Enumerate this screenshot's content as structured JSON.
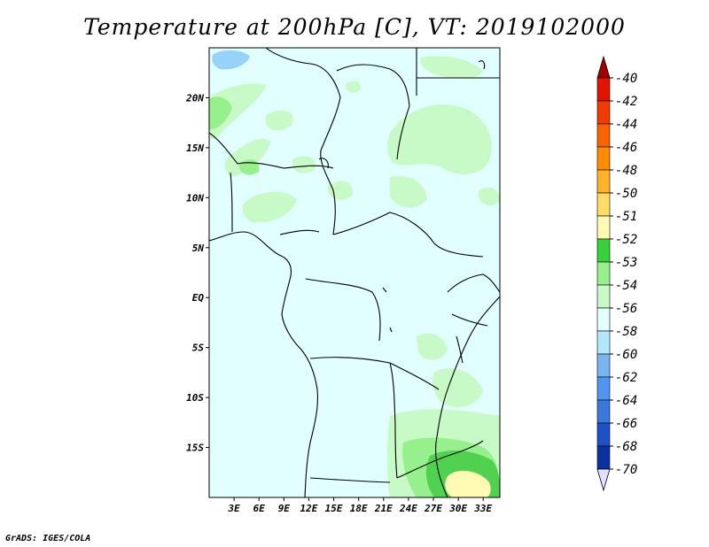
{
  "title": "Temperature at 200hPa [C], VT: 2019102000",
  "footer": "GrADS: IGES/COLA",
  "map": {
    "lon_range": [
      0,
      35
    ],
    "lat_range": [
      -20,
      25
    ],
    "lon_ticks": [
      {
        "value": 3,
        "label": "3E"
      },
      {
        "value": 6,
        "label": "6E"
      },
      {
        "value": 9,
        "label": "9E"
      },
      {
        "value": 12,
        "label": "12E"
      },
      {
        "value": 15,
        "label": "15E"
      },
      {
        "value": 18,
        "label": "18E"
      },
      {
        "value": 21,
        "label": "21E"
      },
      {
        "value": 24,
        "label": "24E"
      },
      {
        "value": 27,
        "label": "27E"
      },
      {
        "value": 30,
        "label": "30E"
      },
      {
        "value": 33,
        "label": "33E"
      }
    ],
    "lat_ticks": [
      {
        "value": 20,
        "label": "20N"
      },
      {
        "value": 15,
        "label": "15N"
      },
      {
        "value": 10,
        "label": "10N"
      },
      {
        "value": 5,
        "label": "5N"
      },
      {
        "value": 0,
        "label": "EQ"
      },
      {
        "value": -5,
        "label": "5S"
      },
      {
        "value": -10,
        "label": "10S"
      },
      {
        "value": -15,
        "label": "15S"
      }
    ],
    "colors": {
      "background_field": "#e0fffe",
      "level_54": "#c8fac8",
      "level_53": "#96f08c",
      "level_52": "#50d250",
      "level_51": "#fffab4",
      "level_56": "#96d2fa"
    }
  },
  "colorbar": {
    "levels": [
      {
        "label": "-40",
        "color": "#e11400"
      },
      {
        "label": "-42",
        "color": "#f03c00"
      },
      {
        "label": "-44",
        "color": "#fa6400"
      },
      {
        "label": "-46",
        "color": "#ff8c00"
      },
      {
        "label": "-48",
        "color": "#ffb428"
      },
      {
        "label": "-50",
        "color": "#ffdc64"
      },
      {
        "label": "-51",
        "color": "#fffab4"
      },
      {
        "label": "-52",
        "color": "#37d23c"
      },
      {
        "label": "-53",
        "color": "#96f08c"
      },
      {
        "label": "-54",
        "color": "#c8fac8"
      },
      {
        "label": "-56",
        "color": "#e0fffe"
      },
      {
        "label": "-58",
        "color": "#b4e6ff"
      },
      {
        "label": "-60",
        "color": "#78b4f0"
      },
      {
        "label": "-62",
        "color": "#5096f0"
      },
      {
        "label": "-64",
        "color": "#3c78dc"
      },
      {
        "label": "-66",
        "color": "#1e50c8"
      },
      {
        "label": "-68",
        "color": "#0a32a0"
      },
      {
        "label": "-70",
        "color": "#0a1478"
      }
    ],
    "top_cap_color": "#a00000",
    "bottom_cap_color": "#e1e1ff"
  }
}
